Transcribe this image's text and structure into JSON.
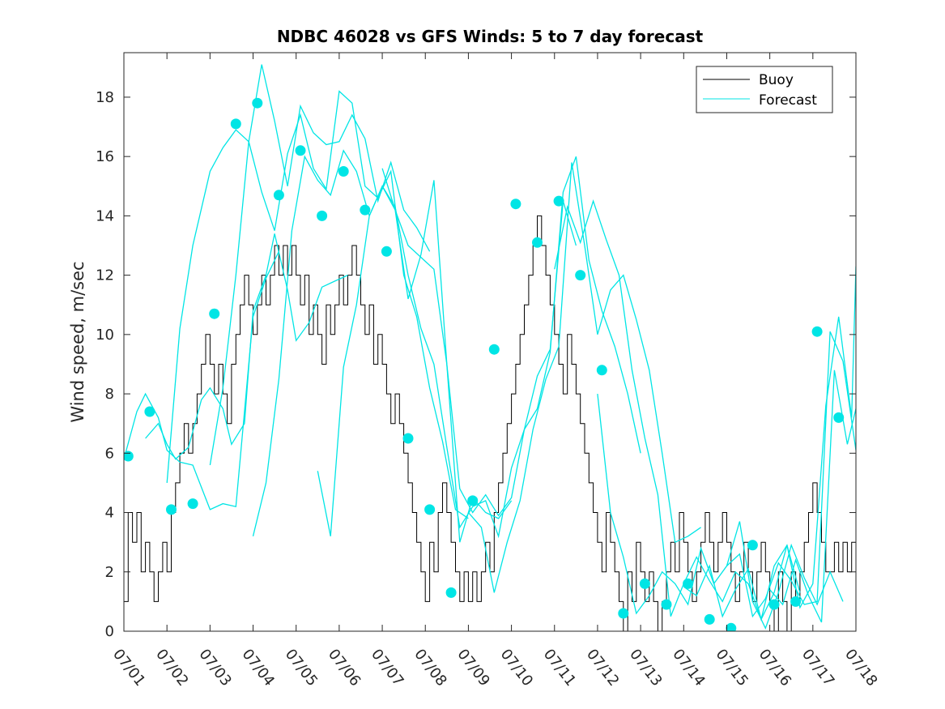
{
  "chart_data": {
    "type": "line",
    "title": "NDBC 46028 vs GFS Winds: 5 to 7 day forecast",
    "xlabel": "",
    "ylabel": "Wind speed, m/sec",
    "xlim": [
      0,
      17
    ],
    "ylim": [
      0,
      19.5
    ],
    "x_units": "days since 07/01",
    "x_ticks": [
      0,
      1,
      2,
      3,
      4,
      5,
      6,
      7,
      8,
      9,
      10,
      11,
      12,
      13,
      14,
      15,
      16,
      17
    ],
    "x_tick_labels": [
      "07/01",
      "07/02",
      "07/03",
      "07/04",
      "07/05",
      "07/06",
      "07/07",
      "07/08",
      "07/09",
      "07/10",
      "07/11",
      "07/12",
      "07/13",
      "07/14",
      "07/15",
      "07/16",
      "07/17",
      "07/18"
    ],
    "y_ticks": [
      0,
      2,
      4,
      6,
      8,
      10,
      12,
      14,
      16,
      18
    ],
    "y_tick_labels": [
      "0",
      "2",
      "4",
      "6",
      "8",
      "10",
      "12",
      "14",
      "16",
      "18"
    ],
    "legend": {
      "position": "top-right",
      "entries": [
        {
          "label": "Buoy",
          "color": "#000000"
        },
        {
          "label": "Forecast",
          "color": "#00e5e5"
        }
      ]
    },
    "colors": {
      "buoy": "#000000",
      "forecast": "#00e5e5",
      "marker": "#00e5e5"
    },
    "grid": false,
    "buoy": {
      "name": "Buoy",
      "x": [
        0,
        0.1,
        0.2,
        0.3,
        0.4,
        0.5,
        0.6,
        0.7,
        0.8,
        0.9,
        1.0,
        1.1,
        1.2,
        1.3,
        1.4,
        1.5,
        1.6,
        1.7,
        1.8,
        1.9,
        2.0,
        2.1,
        2.2,
        2.3,
        2.4,
        2.5,
        2.6,
        2.7,
        2.8,
        2.9,
        3.0,
        3.1,
        3.2,
        3.3,
        3.4,
        3.5,
        3.6,
        3.7,
        3.8,
        3.9,
        4.0,
        4.1,
        4.2,
        4.3,
        4.4,
        4.5,
        4.6,
        4.7,
        4.8,
        4.9,
        5.0,
        5.1,
        5.2,
        5.3,
        5.4,
        5.5,
        5.6,
        5.7,
        5.8,
        5.9,
        6.0,
        6.1,
        6.2,
        6.3,
        6.4,
        6.5,
        6.6,
        6.7,
        6.8,
        6.9,
        7.0,
        7.1,
        7.2,
        7.3,
        7.4,
        7.5,
        7.6,
        7.7,
        7.8,
        7.9,
        8.0,
        8.1,
        8.2,
        8.3,
        8.4,
        8.5,
        8.6,
        8.7,
        8.8,
        8.9,
        9.0,
        9.1,
        9.2,
        9.3,
        9.4,
        9.5,
        9.6,
        9.7,
        9.8,
        9.9,
        10.0,
        10.1,
        10.2,
        10.3,
        10.4,
        10.5,
        10.6,
        10.7,
        10.8,
        10.9,
        11.0,
        11.1,
        11.2,
        11.3,
        11.4,
        11.5,
        11.6,
        11.7,
        11.8,
        11.9,
        12.0,
        12.1,
        12.2,
        12.3,
        12.4,
        12.5,
        12.6,
        12.7,
        12.8,
        12.9,
        13.0,
        13.1,
        13.2,
        13.3,
        13.4,
        13.5,
        13.6,
        13.7,
        13.8,
        13.9,
        14.0,
        14.1,
        14.2,
        14.3,
        14.4,
        14.5,
        14.6,
        14.7,
        14.8,
        14.9,
        15.0,
        15.1,
        15.2,
        15.3,
        15.4,
        15.5,
        15.6,
        15.7,
        15.8,
        15.9,
        16.0,
        16.1,
        16.2,
        16.3,
        16.4,
        16.5,
        16.6,
        16.7,
        16.8,
        16.9,
        17.0
      ],
      "y": [
        1,
        4,
        3,
        4,
        2,
        3,
        2,
        1,
        2,
        3,
        2,
        4,
        5,
        6,
        7,
        6,
        7,
        8,
        9,
        10,
        9,
        8,
        9,
        8,
        7,
        9,
        10,
        11,
        12,
        11,
        10,
        11,
        12,
        11,
        12,
        13,
        12,
        13,
        12,
        13,
        12,
        11,
        12,
        10,
        11,
        10,
        9,
        11,
        10,
        11,
        12,
        11,
        12,
        13,
        12,
        11,
        10,
        11,
        9,
        10,
        9,
        8,
        7,
        8,
        7,
        6,
        5,
        4,
        3,
        2,
        1,
        3,
        2,
        4,
        5,
        4,
        3,
        2,
        1,
        2,
        1,
        2,
        1,
        2,
        3,
        2,
        4,
        5,
        6,
        7,
        8,
        9,
        10,
        11,
        12,
        13,
        14,
        13,
        12,
        11,
        10,
        9,
        8,
        10,
        9,
        8,
        7,
        6,
        5,
        4,
        3,
        2,
        4,
        3,
        2,
        1,
        0,
        2,
        1,
        3,
        2,
        1,
        2,
        1,
        0,
        1,
        2,
        3,
        2,
        4,
        3,
        2,
        1,
        2,
        3,
        4,
        3,
        2,
        3,
        4,
        3,
        2,
        1,
        2,
        3,
        2,
        1,
        2,
        3,
        2,
        1,
        0,
        2,
        1,
        0,
        2,
        1,
        2,
        3,
        4,
        5,
        4,
        3,
        2,
        2,
        3,
        2,
        3,
        2,
        3,
        2
      ]
    },
    "forecast_runs": [
      {
        "x": [
          0,
          0.3,
          0.5,
          0.8,
          1.0,
          1.3,
          1.6,
          2.0,
          2.3,
          2.6,
          3.0,
          3.3,
          3.6
        ],
        "y": [
          5.8,
          7.4,
          8.0,
          7.2,
          6.1,
          5.7,
          5.6,
          4.1,
          4.3,
          4.2,
          10.6,
          11.9,
          12.8
        ]
      },
      {
        "x": [
          0.5,
          0.8,
          1.0,
          1.2,
          1.5,
          1.8,
          2.0,
          2.3,
          2.5,
          2.8,
          3.0,
          3.3,
          3.5,
          3.8,
          4.0,
          4.3,
          4.6,
          4.9,
          5.2
        ],
        "y": [
          6.5,
          7.0,
          6.3,
          5.8,
          6.2,
          7.8,
          8.2,
          7.5,
          6.3,
          7.0,
          10.8,
          12.0,
          13.4,
          11.5,
          9.8,
          10.4,
          11.6,
          11.8,
          12.0
        ]
      },
      {
        "x": [
          1.0,
          1.3,
          1.6,
          2.0,
          2.3,
          2.6,
          2.9,
          3.2,
          3.5,
          3.8,
          4.1,
          4.4,
          4.7,
          5.0,
          5.3,
          5.6,
          5.9,
          6.2,
          6.5,
          6.8,
          7.1
        ],
        "y": [
          5.0,
          10.2,
          13.0,
          15.5,
          16.3,
          16.9,
          16.5,
          19.1,
          17.2,
          15.0,
          17.7,
          16.8,
          16.4,
          16.5,
          17.4,
          16.6,
          14.5,
          15.8,
          14.2,
          13.6,
          12.8
        ]
      },
      {
        "x": [
          2.0,
          2.3,
          2.6,
          2.9,
          3.2,
          3.5,
          3.8,
          4.1,
          4.4,
          4.7,
          5.0,
          5.3,
          5.6,
          5.9,
          6.2,
          6.5,
          6.8,
          7.1,
          7.4,
          7.7,
          8.0
        ],
        "y": [
          5.6,
          8.2,
          12.0,
          16.5,
          14.8,
          13.5,
          16.1,
          17.4,
          15.6,
          14.9,
          18.2,
          17.8,
          15.0,
          14.6,
          15.5,
          12.0,
          10.6,
          8.2,
          6.4,
          4.1,
          3.8
        ]
      },
      {
        "x": [
          3.0,
          3.3,
          3.6,
          3.9,
          4.2,
          4.5,
          4.8,
          5.1,
          5.4,
          5.7,
          6.0,
          6.3,
          6.6,
          6.9,
          7.2,
          7.5,
          7.8,
          8.1,
          8.4,
          8.7,
          9.0
        ],
        "y": [
          3.2,
          5.0,
          8.5,
          13.5,
          16.0,
          15.2,
          14.7,
          16.2,
          15.5,
          14.0,
          15.0,
          14.2,
          11.2,
          12.7,
          15.2,
          9.0,
          3.0,
          4.5,
          4.0,
          3.8,
          4.4
        ]
      },
      {
        "x": [
          4.5,
          4.8,
          5.1,
          5.4,
          5.7,
          6.0,
          6.3,
          6.6,
          6.9,
          7.2,
          7.5,
          7.8,
          8.1,
          8.4,
          8.7,
          9.0,
          9.3,
          9.6,
          9.9,
          10.2,
          10.5
        ],
        "y": [
          5.4,
          3.2,
          8.9,
          11.0,
          14.0,
          15.0,
          14.3,
          12.0,
          10.2,
          9.0,
          6.2,
          3.5,
          4.2,
          4.4,
          3.2,
          5.5,
          6.8,
          8.6,
          9.5,
          14.5,
          13.0
        ]
      },
      {
        "x": [
          6.0,
          6.3,
          6.6,
          6.9,
          7.2,
          7.5,
          7.8,
          8.1,
          8.4,
          8.7,
          9.0,
          9.3,
          9.6,
          9.9,
          10.2,
          10.5,
          10.8,
          11.1,
          11.4,
          11.7,
          12.0
        ],
        "y": [
          15.6,
          14.2,
          13.0,
          12.6,
          12.2,
          9.0,
          4.8,
          4.0,
          4.6,
          3.9,
          4.5,
          6.8,
          7.5,
          9.4,
          14.8,
          16.0,
          12.5,
          10.8,
          9.6,
          8.0,
          6.0
        ]
      },
      {
        "x": [
          8.0,
          8.3,
          8.6,
          8.9,
          9.2,
          9.5,
          9.8,
          10.1,
          10.4,
          10.7,
          11.0,
          11.3,
          11.6,
          11.9,
          12.2,
          12.5,
          12.8,
          13.1,
          13.4
        ],
        "y": [
          4.0,
          3.5,
          1.3,
          3.0,
          4.4,
          6.8,
          8.5,
          9.6,
          15.8,
          13.0,
          10.0,
          11.5,
          12.0,
          10.5,
          8.8,
          6.0,
          3.0,
          3.2,
          3.5
        ]
      },
      {
        "x": [
          10.0,
          10.3,
          10.6,
          10.9,
          11.2,
          11.5,
          11.8,
          12.1,
          12.4,
          12.7,
          13.0,
          13.3,
          13.6,
          13.9,
          14.2,
          14.5,
          14.8,
          15.1,
          15.4,
          15.7
        ],
        "y": [
          12.2,
          14.3,
          13.1,
          14.5,
          13.2,
          12.0,
          8.8,
          6.5,
          4.6,
          0.5,
          1.6,
          2.5,
          1.7,
          1.0,
          2.0,
          1.6,
          0.4,
          2.2,
          2.9,
          1.3
        ]
      },
      {
        "x": [
          11.0,
          11.3,
          11.6,
          11.9,
          12.2,
          12.5,
          12.8,
          13.1,
          13.4,
          13.7,
          14.0,
          14.3,
          14.6,
          14.9,
          15.2,
          15.5,
          15.8,
          16.1,
          16.4,
          16.7
        ],
        "y": [
          8.0,
          4.0,
          2.5,
          0.6,
          1.2,
          2.0,
          1.6,
          0.9,
          2.8,
          1.6,
          2.2,
          3.7,
          1.0,
          0.1,
          1.3,
          2.9,
          1.8,
          0.9,
          2.0,
          1.0
        ]
      },
      {
        "x": [
          13.0,
          13.3,
          13.6,
          13.9,
          14.2,
          14.5,
          14.8,
          15.1,
          15.4,
          15.7,
          16.0,
          16.3,
          16.6,
          16.9,
          17.0
        ],
        "y": [
          1.5,
          1.2,
          2.2,
          0.5,
          1.4,
          2.1,
          0.4,
          1.3,
          2.9,
          0.8,
          1.6,
          7.6,
          10.6,
          7.2,
          12.3
        ]
      },
      {
        "x": [
          14.0,
          14.3,
          14.6,
          14.9,
          15.2,
          15.5,
          15.8,
          16.1,
          16.4,
          16.7,
          17.0
        ],
        "y": [
          2.2,
          2.6,
          0.5,
          1.1,
          2.3,
          1.7,
          0.9,
          1.0,
          10.1,
          9.1,
          6.1
        ]
      },
      {
        "x": [
          15.0,
          15.3,
          15.6,
          15.9,
          16.2,
          16.5,
          16.8,
          17.0
        ],
        "y": [
          1.4,
          0.9,
          2.4,
          1.2,
          0.3,
          8.8,
          6.3,
          7.5
        ]
      }
    ],
    "forecast_markers": {
      "x": [
        0.1,
        0.6,
        1.1,
        1.6,
        2.1,
        2.6,
        3.1,
        3.6,
        4.1,
        4.6,
        5.1,
        5.6,
        6.1,
        6.6,
        7.1,
        7.6,
        8.1,
        8.6,
        9.1,
        9.6,
        10.1,
        10.6,
        11.1,
        11.6,
        12.1,
        12.6,
        13.1,
        13.6,
        14.1,
        14.6,
        15.1,
        15.6,
        16.1,
        16.6
      ],
      "y": [
        5.9,
        7.4,
        4.1,
        4.3,
        10.7,
        17.1,
        17.8,
        14.7,
        16.2,
        14.0,
        15.5,
        14.2,
        12.8,
        6.5,
        4.1,
        1.3,
        4.4,
        9.5,
        14.4,
        13.1,
        14.5,
        12.0,
        8.8,
        0.6,
        1.6,
        0.9,
        1.6,
        0.4,
        0.1,
        2.9,
        0.9,
        1.0,
        10.1,
        7.2
      ]
    }
  }
}
